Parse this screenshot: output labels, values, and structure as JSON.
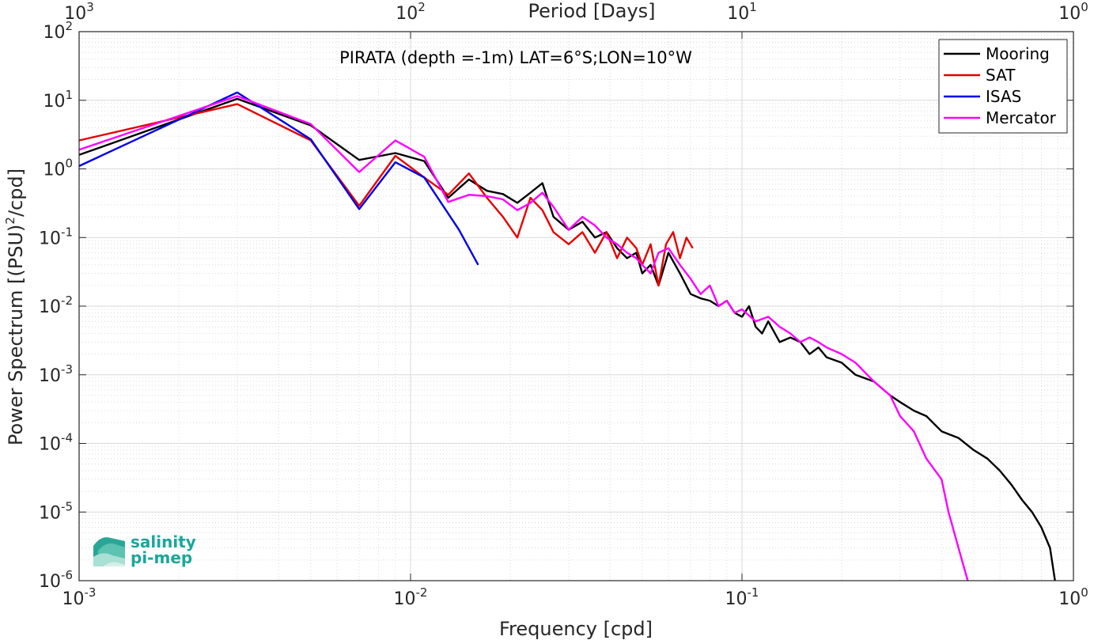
{
  "chart_data": {
    "type": "line",
    "title": "PIRATA (depth =-1m) LAT=6°S;LON=10°W",
    "xlabel": "Frequency [cpd]",
    "ylabel_main": "Power Spectrum [(PSU)",
    "ylabel_sup": "2",
    "ylabel_tail": "/cpd]",
    "top_xlabel": "Period [Days]",
    "x_scale": "log",
    "y_scale": "log",
    "xlim": [
      0.001,
      1
    ],
    "ylim": [
      1e-06,
      100
    ],
    "grid": true,
    "legend_position": "top-right",
    "x_ticks": [
      {
        "value": 0.001,
        "base": "10",
        "exp": "-3"
      },
      {
        "value": 0.01,
        "base": "10",
        "exp": "-2"
      },
      {
        "value": 0.1,
        "base": "10",
        "exp": "-1"
      },
      {
        "value": 1,
        "base": "10",
        "exp": "0"
      }
    ],
    "top_ticks": [
      {
        "value": 0.001,
        "base": "10",
        "exp": "3"
      },
      {
        "value": 0.01,
        "base": "10",
        "exp": "2"
      },
      {
        "value": 0.1,
        "base": "10",
        "exp": "1"
      },
      {
        "value": 1,
        "base": "10",
        "exp": "0"
      }
    ],
    "y_ticks": [
      {
        "value": 100,
        "base": "10",
        "exp": "2"
      },
      {
        "value": 10,
        "base": "10",
        "exp": "1"
      },
      {
        "value": 1,
        "base": "10",
        "exp": "0"
      },
      {
        "value": 0.1,
        "base": "10",
        "exp": "-1"
      },
      {
        "value": 0.01,
        "base": "10",
        "exp": "-2"
      },
      {
        "value": 0.001,
        "base": "10",
        "exp": "-3"
      },
      {
        "value": 0.0001,
        "base": "10",
        "exp": "-4"
      },
      {
        "value": 1e-05,
        "base": "10",
        "exp": "-5"
      },
      {
        "value": 1e-06,
        "base": "10",
        "exp": "-6"
      }
    ],
    "series": [
      {
        "name": "Mooring",
        "color": "#000000",
        "x": [
          0.001,
          0.003,
          0.005,
          0.007,
          0.009,
          0.011,
          0.013,
          0.015,
          0.017,
          0.019,
          0.021,
          0.023,
          0.025,
          0.027,
          0.03,
          0.033,
          0.036,
          0.039,
          0.042,
          0.045,
          0.048,
          0.05,
          0.053,
          0.056,
          0.06,
          0.065,
          0.07,
          0.075,
          0.08,
          0.085,
          0.09,
          0.095,
          0.1,
          0.105,
          0.11,
          0.115,
          0.12,
          0.13,
          0.14,
          0.15,
          0.16,
          0.17,
          0.18,
          0.2,
          0.22,
          0.25,
          0.28,
          0.3,
          0.33,
          0.36,
          0.4,
          0.45,
          0.5,
          0.55,
          0.6,
          0.65,
          0.7,
          0.75,
          0.8,
          0.85,
          0.88
        ],
        "y": [
          1.6,
          10.5,
          4.3,
          1.35,
          1.7,
          1.3,
          0.38,
          0.7,
          0.48,
          0.43,
          0.32,
          0.45,
          0.62,
          0.2,
          0.13,
          0.17,
          0.1,
          0.12,
          0.07,
          0.05,
          0.06,
          0.03,
          0.04,
          0.02,
          0.06,
          0.03,
          0.015,
          0.013,
          0.012,
          0.01,
          0.012,
          0.008,
          0.007,
          0.01,
          0.005,
          0.004,
          0.006,
          0.003,
          0.0035,
          0.003,
          0.002,
          0.0025,
          0.0018,
          0.0015,
          0.001,
          0.0008,
          0.0005,
          0.0004,
          0.0003,
          0.00025,
          0.00015,
          0.00012,
          8e-05,
          6e-05,
          4e-05,
          2.5e-05,
          1.5e-05,
          1e-05,
          6e-06,
          3e-06,
          1e-06
        ]
      },
      {
        "name": "SAT",
        "color": "#e60000",
        "x": [
          0.001,
          0.003,
          0.005,
          0.007,
          0.009,
          0.011,
          0.013,
          0.015,
          0.017,
          0.019,
          0.021,
          0.023,
          0.025,
          0.027,
          0.03,
          0.033,
          0.036,
          0.039,
          0.042,
          0.045,
          0.048,
          0.05,
          0.053,
          0.056,
          0.059,
          0.062,
          0.065,
          0.068,
          0.071
        ],
        "y": [
          2.6,
          8.8,
          2.6,
          0.29,
          1.55,
          0.75,
          0.42,
          0.86,
          0.38,
          0.2,
          0.1,
          0.38,
          0.25,
          0.12,
          0.08,
          0.12,
          0.06,
          0.12,
          0.05,
          0.1,
          0.07,
          0.04,
          0.08,
          0.02,
          0.08,
          0.12,
          0.05,
          0.1,
          0.07
        ]
      },
      {
        "name": "ISAS",
        "color": "#0000e6",
        "x": [
          0.001,
          0.003,
          0.005,
          0.007,
          0.009,
          0.011,
          0.014,
          0.016
        ],
        "y": [
          1.1,
          13,
          2.7,
          0.26,
          1.25,
          0.75,
          0.13,
          0.04
        ]
      },
      {
        "name": "Mercator",
        "color": "#ff00ff",
        "x": [
          0.001,
          0.003,
          0.005,
          0.007,
          0.009,
          0.011,
          0.013,
          0.015,
          0.017,
          0.019,
          0.021,
          0.023,
          0.025,
          0.027,
          0.03,
          0.033,
          0.036,
          0.039,
          0.042,
          0.045,
          0.048,
          0.05,
          0.053,
          0.056,
          0.06,
          0.065,
          0.07,
          0.075,
          0.08,
          0.085,
          0.09,
          0.095,
          0.1,
          0.11,
          0.12,
          0.13,
          0.14,
          0.15,
          0.16,
          0.17,
          0.18,
          0.2,
          0.22,
          0.25,
          0.28,
          0.3,
          0.33,
          0.36,
          0.4,
          0.42,
          0.45,
          0.48
        ],
        "y": [
          1.9,
          11.5,
          4.5,
          0.9,
          2.6,
          1.5,
          0.33,
          0.42,
          0.4,
          0.36,
          0.25,
          0.32,
          0.45,
          0.28,
          0.13,
          0.2,
          0.15,
          0.1,
          0.08,
          0.06,
          0.05,
          0.04,
          0.03,
          0.06,
          0.07,
          0.04,
          0.025,
          0.015,
          0.02,
          0.01,
          0.012,
          0.008,
          0.009,
          0.006,
          0.007,
          0.005,
          0.004,
          0.003,
          0.0035,
          0.003,
          0.0025,
          0.002,
          0.0015,
          0.0008,
          0.0005,
          0.00025,
          0.00015,
          6e-05,
          3e-05,
          1e-05,
          3e-06,
          1e-06
        ]
      }
    ]
  },
  "logo": {
    "line1": "salinity",
    "line2": "pi-mep"
  }
}
